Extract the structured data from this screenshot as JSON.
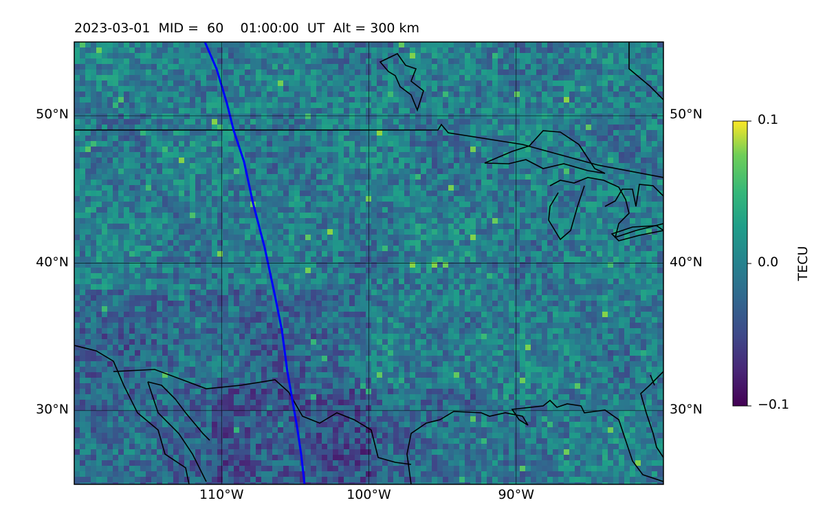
{
  "title": "2023-03-01  MID =  60    01:00:00  UT  Alt = 300 km",
  "map": {
    "lon_range": [
      -120,
      -80
    ],
    "lat_range": [
      25,
      55
    ],
    "lat_ticks": [
      {
        "value": 30,
        "label": "30°N"
      },
      {
        "value": 40,
        "label": "40°N"
      },
      {
        "value": 50,
        "label": "50°N"
      }
    ],
    "lon_ticks": [
      {
        "value": -110,
        "label": "110°W"
      },
      {
        "value": -100,
        "label": "100°W"
      },
      {
        "value": -90,
        "label": "90°W"
      }
    ],
    "gridlines": true,
    "track_color": "#0000ff",
    "coastline_color": "#000000"
  },
  "colorbar": {
    "title": "TECU",
    "min": -0.1,
    "max": 0.1,
    "ticks": [
      {
        "value": 0.1,
        "label": "0.1"
      },
      {
        "value": 0.0,
        "label": "0.0"
      },
      {
        "value": -0.1,
        "label": "−0.1"
      }
    ],
    "colormap": "viridis"
  }
}
